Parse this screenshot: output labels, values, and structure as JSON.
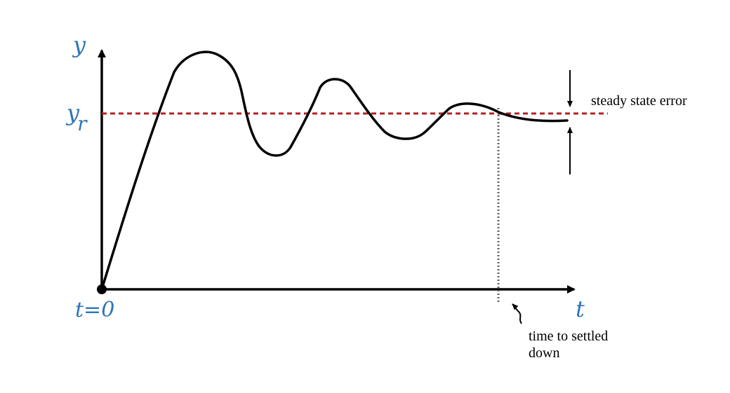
{
  "labels": {
    "y_axis": "y",
    "y_ref_main": "y",
    "y_ref_sub": "r",
    "t_axis": "t",
    "t_origin": "t=0"
  },
  "annotations": {
    "steady_state_error": "steady state error",
    "settle_line1": "time to settled",
    "settle_line2": "down"
  },
  "colors": {
    "axis_label": "#2e75b6",
    "reference_line": "#b22222",
    "settle_line": "#666666",
    "curve": "#000000",
    "axes": "#000000"
  }
}
